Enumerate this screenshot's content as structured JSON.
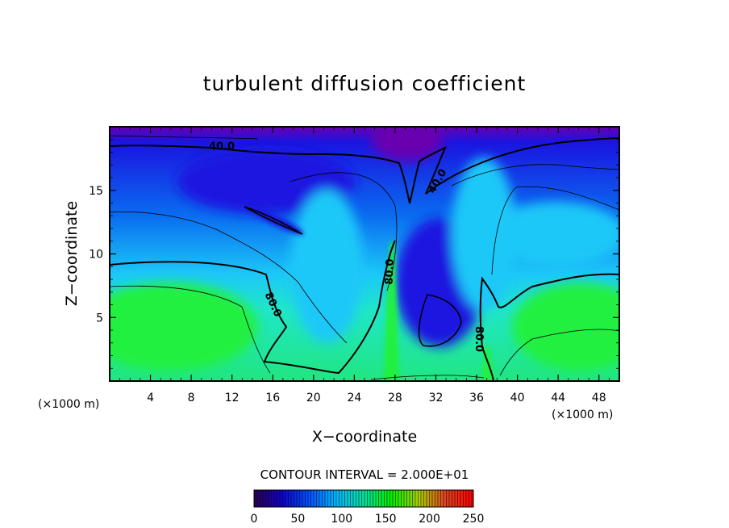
{
  "chart_data": {
    "type": "heatmap",
    "title": "turbulent diffusion coefficient",
    "xlabel": "X−coordinate",
    "ylabel": "Z−coordinate",
    "x_unit_left": "(×1000 m)",
    "x_unit_right": "(×1000 m)",
    "xlim": [
      0,
      50
    ],
    "ylim": [
      0,
      20
    ],
    "x_ticks": [
      4,
      8,
      12,
      16,
      20,
      24,
      28,
      32,
      36,
      40,
      44,
      48
    ],
    "y_ticks": [
      5,
      10,
      15
    ],
    "contour_interval_text": "CONTOUR INTERVAL = 2.000E+01",
    "contour_labels": [
      {
        "text": "40.0",
        "x": 11.0,
        "y": 18.4,
        "rot": 0
      },
      {
        "text": "40.0",
        "x": 32.2,
        "y": 15.7,
        "rot": -60
      },
      {
        "text": "80.0",
        "x": 16.0,
        "y": 6.0,
        "rot": 65
      },
      {
        "text": "80.0",
        "x": 27.5,
        "y": 8.6,
        "rot": -88
      },
      {
        "text": "80.0",
        "x": 36.2,
        "y": 3.3,
        "rot": 90
      }
    ],
    "colorbar": {
      "min": 0,
      "max": 250,
      "tick_labels": [
        "0",
        "50",
        "100",
        "150",
        "200",
        "250"
      ],
      "colors": [
        "#2a0050",
        "#1000c8",
        "#0050ff",
        "#00b8ff",
        "#00e0a0",
        "#00f000",
        "#a8d000",
        "#e04020",
        "#ff0000"
      ]
    },
    "field_colors": {
      "top": "#6800b0",
      "upper": "#1a14e0",
      "mid": "#0a6cf0",
      "light": "#1cc8f8",
      "cyan": "#20e6c8",
      "lower_green": "#20e680",
      "green": "#20f040"
    }
  }
}
